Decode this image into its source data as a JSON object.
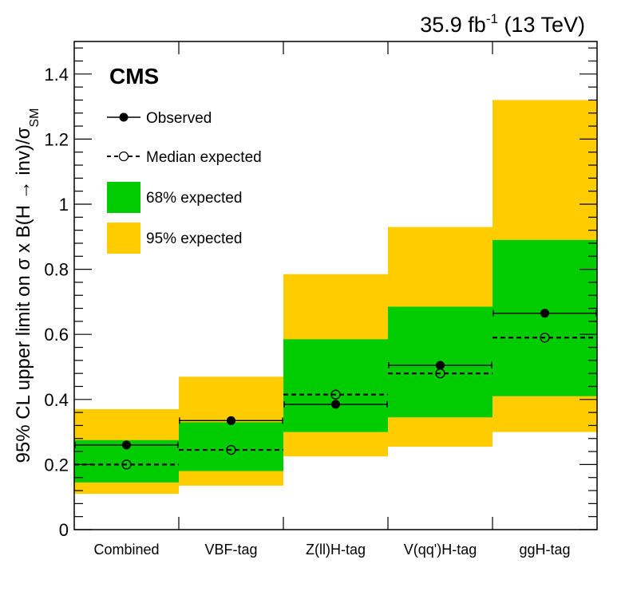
{
  "chart_data": {
    "type": "bar",
    "title": "CMS",
    "lumi_label": "35.9 fb",
    "lumi_exponent": "-1",
    "energy_label": " (13 TeV)",
    "ylabel": "95% CL upper limit on σ x B(H → inv)/σ",
    "ylabel_subscript": "SM",
    "ylim": [
      0,
      1.5
    ],
    "yticks": [
      0,
      0.2,
      0.4,
      0.6,
      0.8,
      1,
      1.2,
      1.4
    ],
    "ytick_labels": [
      "0",
      "0.2",
      "0.4",
      "0.6",
      "0.8",
      "1",
      "1.2",
      "1.4"
    ],
    "categories": [
      "Combined",
      "VBF-tag",
      "Z(ll)H-tag",
      "V(qq')H-tag",
      "ggH-tag"
    ],
    "observed": [
      0.26,
      0.335,
      0.385,
      0.505,
      0.665
    ],
    "expected": [
      0.2,
      0.245,
      0.415,
      0.48,
      0.59
    ],
    "band68_low": [
      0.145,
      0.18,
      0.3,
      0.345,
      0.41
    ],
    "band68_high": [
      0.275,
      0.33,
      0.585,
      0.685,
      0.89
    ],
    "band95_low": [
      0.11,
      0.135,
      0.225,
      0.255,
      0.3
    ],
    "band95_high": [
      0.37,
      0.47,
      0.785,
      0.93,
      1.32
    ],
    "legend": {
      "observed": "Observed",
      "expected": "Median expected",
      "band68": "68% expected",
      "band95": "95% expected"
    },
    "colors": {
      "band68": "#00cc00",
      "band95": "#ffcc00",
      "marker": "#000000"
    }
  }
}
